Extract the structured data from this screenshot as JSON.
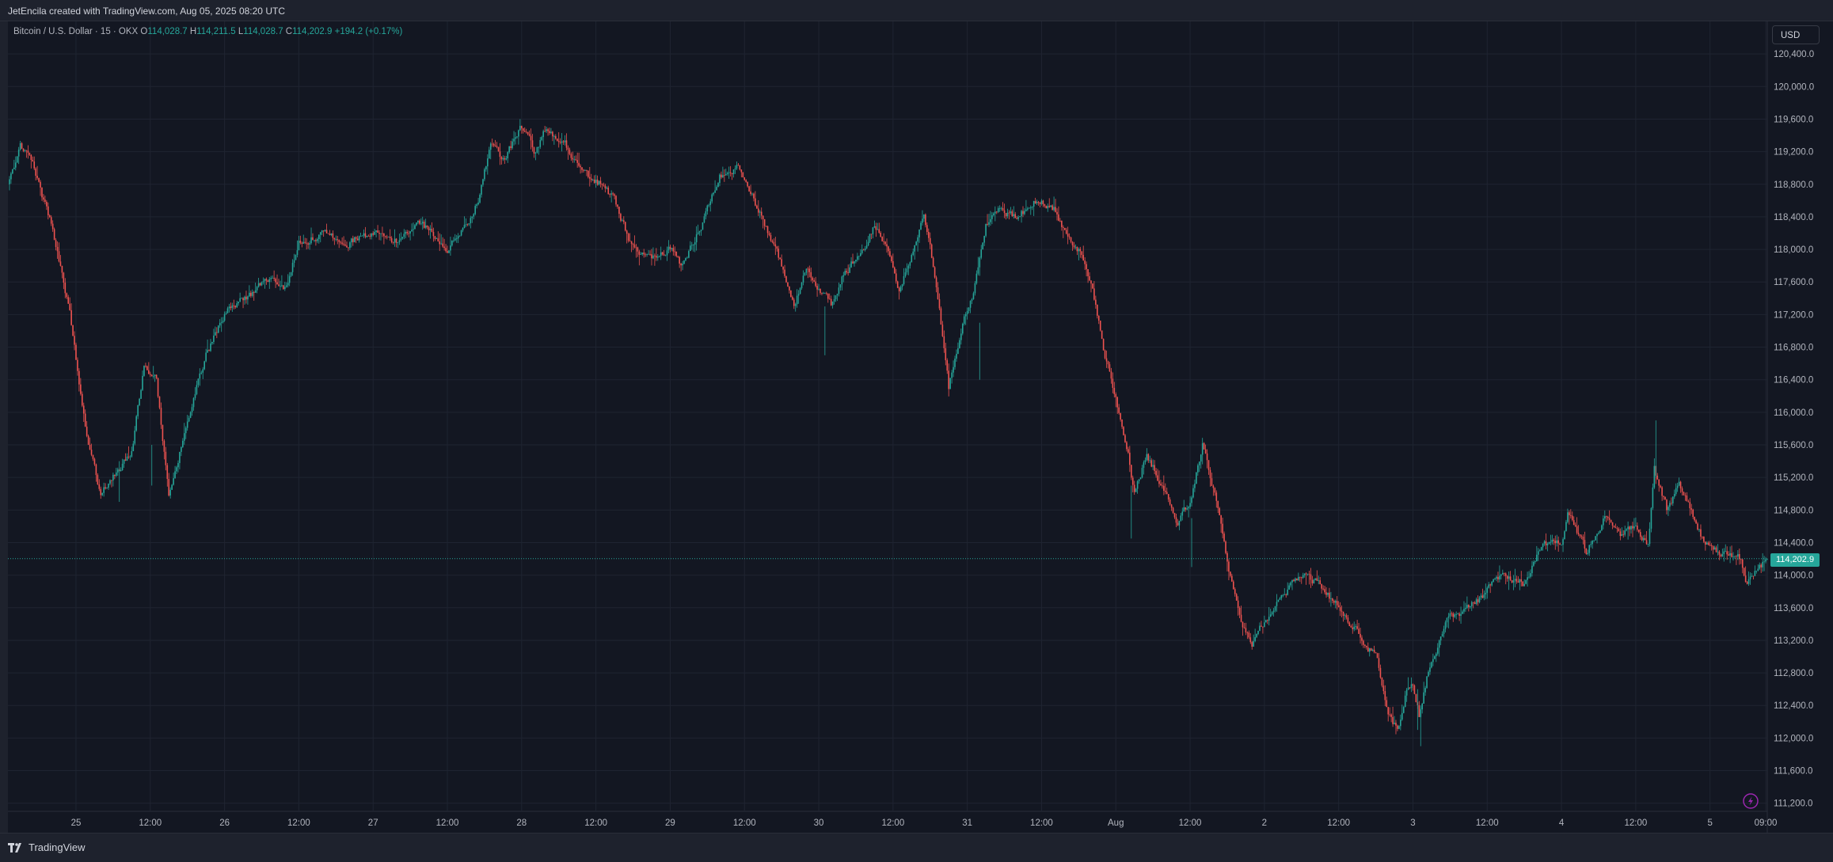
{
  "header": {
    "title": "JetEncila created with TradingView.com, Aug 05, 2025 08:20 UTC"
  },
  "legend": {
    "symbol": "Bitcoin / U.S. Dollar · 15 · OKX",
    "open_label": "O",
    "open": "114,028.7",
    "high_label": "H",
    "high": "114,211.5",
    "low_label": "L",
    "low": "114,028.7",
    "close_label": "C",
    "close": "114,202.9",
    "change": "+194.2 (+0.17%)"
  },
  "price_scale": {
    "currency_button": "USD",
    "last_price_label": "114,202.9"
  },
  "footer": {
    "brand": "TradingView"
  },
  "colors": {
    "background": "#131722",
    "up": "#26a69a",
    "down": "#ef5350",
    "grid": "#1f2431",
    "text": "#b2b5be"
  },
  "icons": {
    "logo": "tradingview-logo-icon",
    "lightning": "lightning-bolt-icon"
  },
  "chart_data": {
    "type": "candlestick",
    "symbol": "Bitcoin / U.S. Dollar",
    "interval": "15",
    "exchange": "OKX",
    "currency": "USD",
    "y_ticks": [
      111200,
      111600,
      112000,
      112400,
      112800,
      113200,
      113600,
      114000,
      114400,
      114800,
      115200,
      115600,
      116000,
      116400,
      116800,
      117200,
      117600,
      118000,
      118400,
      118800,
      119200,
      119600,
      120000,
      120400
    ],
    "y_tick_labels": [
      "111,200.0",
      "111,600.0",
      "112,000.0",
      "112,400.0",
      "112,800.0",
      "113,200.0",
      "113,600.0",
      "114,000.0",
      "114,400.0",
      "114,800.0",
      "115,200.0",
      "115,600.0",
      "116,000.0",
      "116,400.0",
      "116,800.0",
      "117,200.0",
      "117,600.0",
      "118,000.0",
      "118,400.0",
      "118,800.0",
      "119,200.0",
      "119,600.0",
      "120,000.0",
      "120,400.0"
    ],
    "ylim": [
      111100,
      120800
    ],
    "x_range": [
      "2025-07-24 13:00",
      "2025-08-05 09:15"
    ],
    "x_ticks": [
      {
        "t": "2025-07-25 00:00",
        "label": "25"
      },
      {
        "t": "2025-07-25 12:00",
        "label": "12:00"
      },
      {
        "t": "2025-07-26 00:00",
        "label": "26"
      },
      {
        "t": "2025-07-26 12:00",
        "label": "12:00"
      },
      {
        "t": "2025-07-27 00:00",
        "label": "27"
      },
      {
        "t": "2025-07-27 12:00",
        "label": "12:00"
      },
      {
        "t": "2025-07-28 00:00",
        "label": "28"
      },
      {
        "t": "2025-07-28 12:00",
        "label": "12:00"
      },
      {
        "t": "2025-07-29 00:00",
        "label": "29"
      },
      {
        "t": "2025-07-29 12:00",
        "label": "12:00"
      },
      {
        "t": "2025-07-30 00:00",
        "label": "30"
      },
      {
        "t": "2025-07-30 12:00",
        "label": "12:00"
      },
      {
        "t": "2025-07-31 00:00",
        "label": "31"
      },
      {
        "t": "2025-07-31 12:00",
        "label": "12:00"
      },
      {
        "t": "2025-08-01 00:00",
        "label": "Aug"
      },
      {
        "t": "2025-08-01 12:00",
        "label": "12:00"
      },
      {
        "t": "2025-08-02 00:00",
        "label": "2"
      },
      {
        "t": "2025-08-02 12:00",
        "label": "12:00"
      },
      {
        "t": "2025-08-03 00:00",
        "label": "3"
      },
      {
        "t": "2025-08-03 12:00",
        "label": "12:00"
      },
      {
        "t": "2025-08-04 00:00",
        "label": "4"
      },
      {
        "t": "2025-08-04 12:00",
        "label": "12:00"
      },
      {
        "t": "2025-08-05 00:00",
        "label": "5"
      },
      {
        "t": "2025-08-05 09:00",
        "label": "09:00"
      }
    ],
    "last_price": 114202.9,
    "price_path": [
      [
        "2025-07-24 13:00",
        118800
      ],
      [
        "2025-07-24 15:00",
        119300
      ],
      [
        "2025-07-24 17:00",
        119000
      ],
      [
        "2025-07-24 20:00",
        118300
      ],
      [
        "2025-07-24 23:00",
        117200
      ],
      [
        "2025-07-25 02:00",
        115600
      ],
      [
        "2025-07-25 04:00",
        115000
      ],
      [
        "2025-07-25 07:00",
        115300
      ],
      [
        "2025-07-25 09:00",
        115500
      ],
      [
        "2025-07-25 11:00",
        116600
      ],
      [
        "2025-07-25 13:00",
        116400
      ],
      [
        "2025-07-25 15:00",
        115000
      ],
      [
        "2025-07-25 18:00",
        115900
      ],
      [
        "2025-07-25 21:00",
        116700
      ],
      [
        "2025-07-26 00:00",
        117200
      ],
      [
        "2025-07-26 03:00",
        117400
      ],
      [
        "2025-07-26 07:00",
        117600
      ],
      [
        "2025-07-26 10:00",
        117500
      ],
      [
        "2025-07-26 12:00",
        118100
      ],
      [
        "2025-07-26 16:00",
        118200
      ],
      [
        "2025-07-26 20:00",
        118100
      ],
      [
        "2025-07-27 00:00",
        118200
      ],
      [
        "2025-07-27 04:00",
        118100
      ],
      [
        "2025-07-27 08:00",
        118300
      ],
      [
        "2025-07-27 12:00",
        118000
      ],
      [
        "2025-07-27 15:00",
        118300
      ],
      [
        "2025-07-27 17:00",
        118600
      ],
      [
        "2025-07-27 19:00",
        119300
      ],
      [
        "2025-07-27 21:00",
        119100
      ],
      [
        "2025-07-28 00:00",
        119500
      ],
      [
        "2025-07-28 02:00",
        119200
      ],
      [
        "2025-07-28 04:00",
        119500
      ],
      [
        "2025-07-28 07:00",
        119300
      ],
      [
        "2025-07-28 10:00",
        118900
      ],
      [
        "2025-07-28 13:00",
        118800
      ],
      [
        "2025-07-28 15:00",
        118600
      ],
      [
        "2025-07-28 18:00",
        118000
      ],
      [
        "2025-07-28 21:00",
        117900
      ],
      [
        "2025-07-29 00:00",
        118000
      ],
      [
        "2025-07-29 02:00",
        117800
      ],
      [
        "2025-07-29 05:00",
        118300
      ],
      [
        "2025-07-29 08:00",
        118900
      ],
      [
        "2025-07-29 11:00",
        119000
      ],
      [
        "2025-07-29 13:00",
        118700
      ],
      [
        "2025-07-29 16:00",
        118200
      ],
      [
        "2025-07-29 18:00",
        117800
      ],
      [
        "2025-07-29 20:00",
        117300
      ],
      [
        "2025-07-29 22:00",
        117800
      ],
      [
        "2025-07-30 00:00",
        117500
      ],
      [
        "2025-07-30 02:00",
        117300
      ],
      [
        "2025-07-30 04:00",
        117700
      ],
      [
        "2025-07-30 07:00",
        118000
      ],
      [
        "2025-07-30 09:00",
        118300
      ],
      [
        "2025-07-30 11:00",
        118000
      ],
      [
        "2025-07-30 13:00",
        117500
      ],
      [
        "2025-07-30 15:00",
        117900
      ],
      [
        "2025-07-30 17:00",
        118400
      ],
      [
        "2025-07-30 19:00",
        117600
      ],
      [
        "2025-07-30 21:00",
        116300
      ],
      [
        "2025-07-30 23:00",
        117000
      ],
      [
        "2025-07-31 01:00",
        117500
      ],
      [
        "2025-07-31 03:00",
        118300
      ],
      [
        "2025-07-31 05:00",
        118500
      ],
      [
        "2025-07-31 08:00",
        118400
      ],
      [
        "2025-07-31 11:00",
        118600
      ],
      [
        "2025-07-31 14:00",
        118500
      ],
      [
        "2025-07-31 16:00",
        118200
      ],
      [
        "2025-07-31 18:00",
        118000
      ],
      [
        "2025-07-31 20:00",
        117600
      ],
      [
        "2025-07-31 22:00",
        116800
      ],
      [
        "2025-08-01 00:00",
        116200
      ],
      [
        "2025-08-01 02:00",
        115500
      ],
      [
        "2025-08-01 03:00",
        115000
      ],
      [
        "2025-08-01 05:00",
        115500
      ],
      [
        "2025-08-01 08:00",
        115000
      ],
      [
        "2025-08-01 10:00",
        114600
      ],
      [
        "2025-08-01 12:00",
        114900
      ],
      [
        "2025-08-01 14:00",
        115600
      ],
      [
        "2025-08-01 16:00",
        115000
      ],
      [
        "2025-08-01 18:00",
        114100
      ],
      [
        "2025-08-01 20:00",
        113500
      ],
      [
        "2025-08-01 22:00",
        113200
      ],
      [
        "2025-08-02 00:00",
        113400
      ],
      [
        "2025-08-02 03:00",
        113800
      ],
      [
        "2025-08-02 06:00",
        114000
      ],
      [
        "2025-08-02 09:00",
        113900
      ],
      [
        "2025-08-02 12:00",
        113600
      ],
      [
        "2025-08-02 15:00",
        113300
      ],
      [
        "2025-08-02 18:00",
        113000
      ],
      [
        "2025-08-02 20:00",
        112300
      ],
      [
        "2025-08-02 21:30",
        112100
      ],
      [
        "2025-08-02 23:00",
        112600
      ],
      [
        "2025-08-03 00:00",
        112700
      ],
      [
        "2025-08-03 01:00",
        112300
      ],
      [
        "2025-08-03 03:00",
        113000
      ],
      [
        "2025-08-03 06:00",
        113500
      ],
      [
        "2025-08-03 09:00",
        113600
      ],
      [
        "2025-08-03 12:00",
        113800
      ],
      [
        "2025-08-03 15:00",
        114000
      ],
      [
        "2025-08-03 18:00",
        113900
      ],
      [
        "2025-08-03 21:00",
        114400
      ],
      [
        "2025-08-04 00:00",
        114400
      ],
      [
        "2025-08-04 01:00",
        114800
      ],
      [
        "2025-08-04 04:00",
        114300
      ],
      [
        "2025-08-04 07:00",
        114700
      ],
      [
        "2025-08-04 10:00",
        114500
      ],
      [
        "2025-08-04 12:00",
        114600
      ],
      [
        "2025-08-04 14:00",
        114400
      ],
      [
        "2025-08-04 15:00",
        115300
      ],
      [
        "2025-08-04 17:00",
        114800
      ],
      [
        "2025-08-04 19:00",
        115100
      ],
      [
        "2025-08-04 21:00",
        114800
      ],
      [
        "2025-08-04 23:00",
        114400
      ],
      [
        "2025-08-05 01:00",
        114300
      ],
      [
        "2025-08-05 03:00",
        114300
      ],
      [
        "2025-08-05 05:00",
        114200
      ],
      [
        "2025-08-05 06:00",
        113900
      ],
      [
        "2025-08-05 07:00",
        114000
      ],
      [
        "2025-08-05 09:15",
        114202.9
      ]
    ]
  }
}
